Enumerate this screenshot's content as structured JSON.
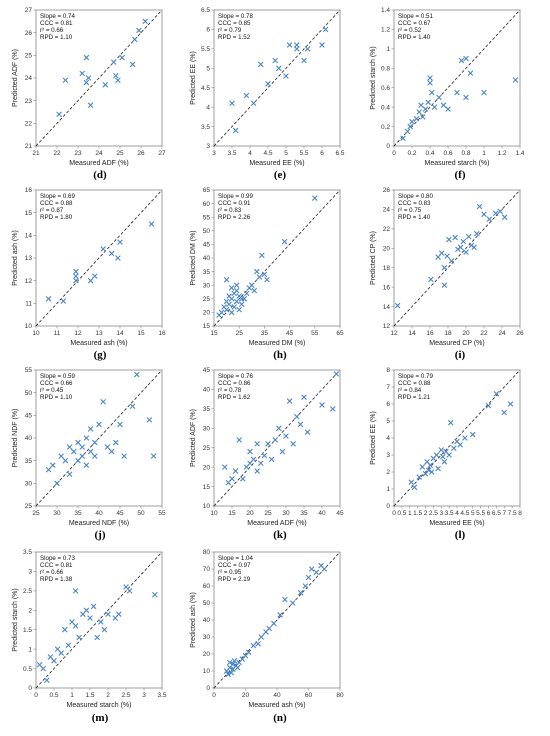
{
  "chart_data": [
    {
      "type": "scatter",
      "panel": "(d)",
      "xlabel": "Measured ADF (%)",
      "ylabel": "Predicted ADF (%)",
      "xlim": [
        21,
        27
      ],
      "ylim": [
        21,
        27
      ],
      "xticks": [
        21,
        22,
        23,
        24,
        25,
        26,
        27
      ],
      "yticks": [
        21,
        22,
        23,
        24,
        25,
        26,
        27
      ],
      "stats": [
        "Slope = 0.74",
        "CCC = 0.81",
        "r² = 0.66",
        "RPD = 1.10"
      ],
      "x": [
        22.1,
        22.4,
        23.2,
        23.5,
        23.4,
        23.6,
        24.3,
        24.7,
        24.8,
        25.1,
        24.9,
        25.6,
        25.7,
        25.9,
        26.2,
        23.4
      ],
      "y": [
        22.4,
        23.9,
        24.2,
        24.0,
        23.8,
        22.8,
        23.7,
        24.7,
        24.1,
        24.9,
        23.9,
        24.6,
        25.7,
        26.1,
        26.5,
        24.9
      ]
    },
    {
      "type": "scatter",
      "panel": "(e)",
      "xlabel": "Measured EE (%)",
      "ylabel": "Predicted EE (%)",
      "xlim": [
        3,
        6.5
      ],
      "ylim": [
        3,
        6.5
      ],
      "xticks": [
        3,
        3.5,
        4,
        4.5,
        5,
        5.5,
        6,
        6.5
      ],
      "yticks": [
        3,
        3.5,
        4,
        4.5,
        5,
        5.5,
        6,
        6.5
      ],
      "stats": [
        "Slope = 0.78",
        "CCC = 0.85",
        "r² = 0.79",
        "RPD = 1.52"
      ],
      "x": [
        3.5,
        3.6,
        3.9,
        4.1,
        4.3,
        4.5,
        4.7,
        4.8,
        5.0,
        5.1,
        5.3,
        5.3,
        5.5,
        5.6,
        6.0,
        6.1
      ],
      "y": [
        4.1,
        3.4,
        4.3,
        4.1,
        5.1,
        4.6,
        5.2,
        5.0,
        4.8,
        5.6,
        5.5,
        5.6,
        5.2,
        5.5,
        5.6,
        6.0
      ]
    },
    {
      "type": "scatter",
      "panel": "(f)",
      "xlabel": "Measured starch (%)",
      "ylabel": "Predicted starch (%)",
      "xlim": [
        0,
        1.4
      ],
      "ylim": [
        0,
        1.4
      ],
      "xticks": [
        0,
        0.2,
        0.4,
        0.6,
        0.8,
        1,
        1.2,
        1.4
      ],
      "yticks": [
        0,
        0.2,
        0.4,
        0.6,
        0.8,
        1,
        1.2,
        1.4
      ],
      "stats": [
        "Slope = 0.51",
        "CCC = 0.67",
        "r² = 0.52",
        "RPD = 1.40"
      ],
      "x": [
        0.1,
        0.15,
        0.18,
        0.2,
        0.25,
        0.28,
        0.3,
        0.32,
        0.35,
        0.38,
        0.4,
        0.4,
        0.42,
        0.45,
        0.5,
        0.55,
        0.6,
        0.7,
        0.75,
        0.8,
        0.8,
        0.85,
        1.0,
        1.35
      ],
      "y": [
        0.08,
        0.15,
        0.2,
        0.25,
        0.28,
        0.35,
        0.42,
        0.3,
        0.38,
        0.45,
        0.65,
        0.7,
        0.55,
        0.4,
        0.5,
        0.42,
        0.38,
        0.55,
        0.88,
        0.9,
        0.5,
        0.75,
        0.55,
        0.68
      ]
    },
    {
      "type": "scatter",
      "panel": "(g)",
      "xlabel": "Measured ash (%)",
      "ylabel": "Predicted ash (%)",
      "xlim": [
        10,
        16
      ],
      "ylim": [
        10,
        16
      ],
      "xticks": [
        10,
        11,
        12,
        13,
        14,
        15,
        16
      ],
      "yticks": [
        10,
        11,
        12,
        13,
        14,
        15,
        16
      ],
      "stats": [
        "Slope = 0.69",
        "CCC = 0.88",
        "r² = 0.87",
        "RPD = 1.80"
      ],
      "x": [
        10.6,
        11.3,
        11.9,
        11.9,
        11.9,
        12.6,
        12.8,
        13.2,
        13.6,
        13.9,
        14.0,
        15.5
      ],
      "y": [
        11.2,
        11.1,
        12.4,
        12.2,
        12.0,
        12.0,
        12.2,
        13.4,
        13.2,
        13.0,
        13.7,
        14.5
      ]
    },
    {
      "type": "scatter",
      "panel": "(h)",
      "xlabel": "Measured DM (%)",
      "ylabel": "Predicted DM (%)",
      "xlim": [
        15,
        65
      ],
      "ylim": [
        15,
        65
      ],
      "xticks": [
        15,
        25,
        35,
        45,
        55,
        65
      ],
      "yticks": [
        15,
        20,
        25,
        30,
        35,
        40,
        45,
        50,
        55,
        60,
        65
      ],
      "stats": [
        "Slope = 0.99",
        "CCC = 0.91",
        "r² = 0.83",
        "RPD = 2.26"
      ],
      "x": [
        17,
        18,
        19,
        20,
        20,
        21,
        21,
        22,
        22,
        23,
        23,
        24,
        24,
        25,
        25,
        26,
        26,
        27,
        28,
        29,
        30,
        31,
        32,
        33,
        34,
        35,
        36,
        43,
        55,
        20,
        22,
        24
      ],
      "y": [
        19,
        20,
        22,
        24,
        21,
        23,
        26,
        20,
        25,
        22,
        27,
        24,
        28,
        21,
        26,
        23,
        25,
        25,
        27,
        29,
        30,
        28,
        35,
        33,
        41,
        34,
        32,
        46,
        62,
        32,
        29,
        30
      ]
    },
    {
      "type": "scatter",
      "panel": "(i)",
      "xlabel": "Measured CP (%)",
      "ylabel": "Predicted CP (%)",
      "xlim": [
        12,
        26
      ],
      "ylim": [
        12,
        26
      ],
      "xticks": [
        12,
        14,
        16,
        18,
        20,
        22,
        24,
        26
      ],
      "yticks": [
        12,
        14,
        16,
        18,
        20,
        22,
        24,
        26
      ],
      "stats": [
        "Slope = 0.80",
        "CCC = 0.83",
        "r² = 0.75",
        "RPD = 1.40"
      ],
      "x": [
        12.4,
        16.1,
        16.9,
        17.3,
        17.6,
        17.9,
        18.1,
        18.4,
        18.8,
        19.1,
        19.4,
        19.7,
        20.0,
        20.3,
        20.6,
        20.9,
        21.2,
        21.5,
        22.0,
        22.6,
        23.3,
        23.8,
        24.3,
        17.6
      ],
      "y": [
        14.1,
        16.8,
        19.1,
        19.5,
        16.2,
        19.2,
        20.9,
        18.7,
        21.1,
        19.9,
        20.1,
        20.7,
        19.6,
        21.2,
        20.3,
        20.1,
        21.5,
        24.3,
        23.5,
        23.0,
        23.6,
        23.8,
        23.2,
        18.0
      ]
    },
    {
      "type": "scatter",
      "panel": "(j)",
      "xlabel": "Measured NDF (%)",
      "ylabel": "Predicted NDF (%)",
      "xlim": [
        25,
        55
      ],
      "ylim": [
        25,
        55
      ],
      "xticks": [
        25,
        30,
        35,
        40,
        45,
        50,
        55
      ],
      "yticks": [
        25,
        30,
        35,
        40,
        45,
        50,
        55
      ],
      "stats": [
        "Slope = 0.59",
        "CCC = 0.66",
        "r² = 0.45",
        "RPD = 1.10"
      ],
      "x": [
        28,
        29,
        30,
        31,
        32,
        33,
        33,
        34,
        35,
        35,
        36,
        36,
        37,
        37,
        38,
        38,
        39,
        39,
        40,
        41,
        42,
        43,
        44,
        45,
        46,
        48,
        49,
        52,
        53
      ],
      "y": [
        33,
        34,
        30,
        36,
        35,
        32,
        38,
        37,
        35,
        39,
        38,
        36,
        40,
        34,
        37,
        42,
        39,
        36,
        43,
        48,
        38,
        37,
        39,
        43,
        36,
        47,
        54,
        44,
        36
      ]
    },
    {
      "type": "scatter",
      "panel": "(k)",
      "xlabel": "Measured ADF (%)",
      "ylabel": "Predicted ADF (%)",
      "xlim": [
        10,
        45
      ],
      "ylim": [
        10,
        45
      ],
      "xticks": [
        10,
        15,
        20,
        25,
        30,
        35,
        40,
        45
      ],
      "yticks": [
        10,
        15,
        20,
        25,
        30,
        35,
        40,
        45
      ],
      "stats": [
        "Slope = 0.76",
        "CCC = 0.86",
        "r² = 0.78",
        "RPD = 1.62"
      ],
      "x": [
        13,
        14,
        15,
        16,
        17,
        18,
        19,
        20,
        20,
        21,
        22,
        22,
        23,
        24,
        25,
        26,
        27,
        28,
        29,
        30,
        31,
        32,
        33,
        34,
        35,
        36,
        40,
        43,
        44
      ],
      "y": [
        20,
        16,
        17,
        19,
        27,
        17,
        20,
        21,
        24,
        22,
        19,
        26,
        21,
        23,
        26,
        22,
        27,
        30,
        24,
        28,
        37,
        26,
        33,
        31,
        38,
        29,
        36,
        35,
        44
      ]
    },
    {
      "type": "scatter",
      "panel": "(l)",
      "xlabel": "Measured EE (%)",
      "ylabel": "Predicted EE (%)",
      "xlim": [
        0,
        8
      ],
      "ylim": [
        0,
        8
      ],
      "xticks": [
        0,
        0.5,
        1,
        1.5,
        2,
        2.5,
        3,
        3.5,
        4,
        4.5,
        5,
        5.5,
        6,
        6.5,
        7,
        7.5,
        8
      ],
      "yticks": [
        0,
        1,
        2,
        3,
        4,
        5,
        6,
        7,
        8
      ],
      "stats": [
        "Slope = 0.79",
        "CCC = 0.88",
        "r² = 0.84",
        "RPD = 1.21"
      ],
      "x": [
        1.1,
        1.3,
        1.6,
        1.8,
        2.0,
        2.1,
        2.2,
        2.3,
        2.4,
        2.5,
        2.7,
        2.8,
        3.0,
        3.1,
        3.2,
        3.3,
        3.5,
        3.6,
        3.8,
        4.0,
        4.2,
        4.5,
        5.0,
        6.0,
        6.5,
        7.0,
        7.4
      ],
      "y": [
        1.4,
        1.1,
        1.7,
        2.3,
        1.9,
        2.6,
        2.1,
        2.4,
        2.0,
        2.8,
        3.0,
        2.2,
        3.3,
        2.9,
        2.6,
        3.2,
        3.0,
        4.9,
        3.4,
        3.8,
        3.6,
        4.0,
        4.2,
        5.9,
        6.6,
        5.5,
        6.0
      ]
    },
    {
      "type": "scatter",
      "panel": "(m)",
      "xlabel": "Measured starch (%)",
      "ylabel": "Predicted starch (%)",
      "xlim": [
        0,
        3.5
      ],
      "ylim": [
        0,
        3.5
      ],
      "xticks": [
        0,
        0.5,
        1,
        1.5,
        2,
        2.5,
        3,
        3.5
      ],
      "yticks": [
        0,
        0.5,
        1,
        1.5,
        2,
        2.5,
        3,
        3.5
      ],
      "stats": [
        "Slope = 0.73",
        "CCC = 0.81",
        "r² = 0.66",
        "RPD = 1.38"
      ],
      "x": [
        0.1,
        0.2,
        0.3,
        0.4,
        0.5,
        0.6,
        0.7,
        0.8,
        0.9,
        1.0,
        1.1,
        1.1,
        1.2,
        1.3,
        1.4,
        1.5,
        1.6,
        1.7,
        1.8,
        1.9,
        2.0,
        2.2,
        2.3,
        2.5,
        2.6,
        3.3
      ],
      "y": [
        0.6,
        0.5,
        0.2,
        0.8,
        0.7,
        1.0,
        0.9,
        1.5,
        1.1,
        1.7,
        2.5,
        1.6,
        1.3,
        1.9,
        2.0,
        1.8,
        2.1,
        1.3,
        1.7,
        1.5,
        1.9,
        1.8,
        1.9,
        2.6,
        2.5,
        2.4
      ]
    },
    {
      "type": "scatter",
      "panel": "(n)",
      "xlabel": "Measured ash (%)",
      "ylabel": "Predicted ash (%)",
      "xlim": [
        0,
        80
      ],
      "ylim": [
        0,
        80
      ],
      "xticks": [
        0,
        20,
        40,
        60,
        80
      ],
      "yticks": [
        0,
        10,
        20,
        30,
        40,
        50,
        60,
        70,
        80
      ],
      "stats": [
        "Slope = 1.04",
        "CCC = 0.97",
        "r² = 0.95",
        "RPD = 2.19"
      ],
      "x": [
        8,
        9,
        10,
        10,
        11,
        12,
        12,
        13,
        14,
        15,
        16,
        18,
        20,
        22,
        25,
        28,
        30,
        33,
        35,
        38,
        42,
        45,
        50,
        55,
        58,
        60,
        62,
        65,
        68,
        70
      ],
      "y": [
        10,
        8,
        12,
        15,
        9,
        14,
        11,
        16,
        13,
        12,
        15,
        17,
        19,
        21,
        25,
        26,
        30,
        33,
        35,
        38,
        43,
        52,
        50,
        56,
        60,
        65,
        70,
        68,
        72,
        70
      ]
    }
  ],
  "colors": {
    "marker": "#4a86c8",
    "diagonal": "#222222",
    "axis": "#888888"
  }
}
